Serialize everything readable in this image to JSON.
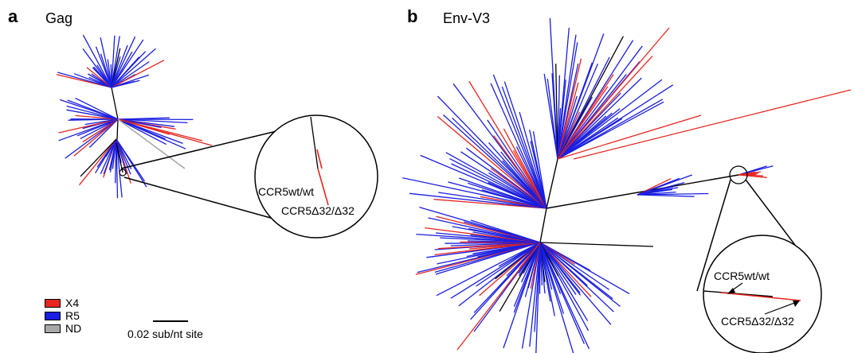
{
  "panels": [
    {
      "letter": "a",
      "title": "Gag"
    },
    {
      "letter": "b",
      "title": "Env-V3"
    }
  ],
  "labels": {
    "wt": "CCR5wt/wt",
    "d32": "CCR5Δ32/Δ32"
  },
  "legend": {
    "items": [
      {
        "label": "X4",
        "color": "#e8251f"
      },
      {
        "label": "R5",
        "color": "#1a1ee0"
      },
      {
        "label": "ND",
        "color": "#a8a8a8"
      }
    ]
  },
  "scale_bar": {
    "label": "0.02 sub/nt site"
  },
  "colors": {
    "x4": "#e8251f",
    "r5": "#1a1ee0",
    "nd": "#a8a8a8",
    "internal": "#000000"
  }
}
